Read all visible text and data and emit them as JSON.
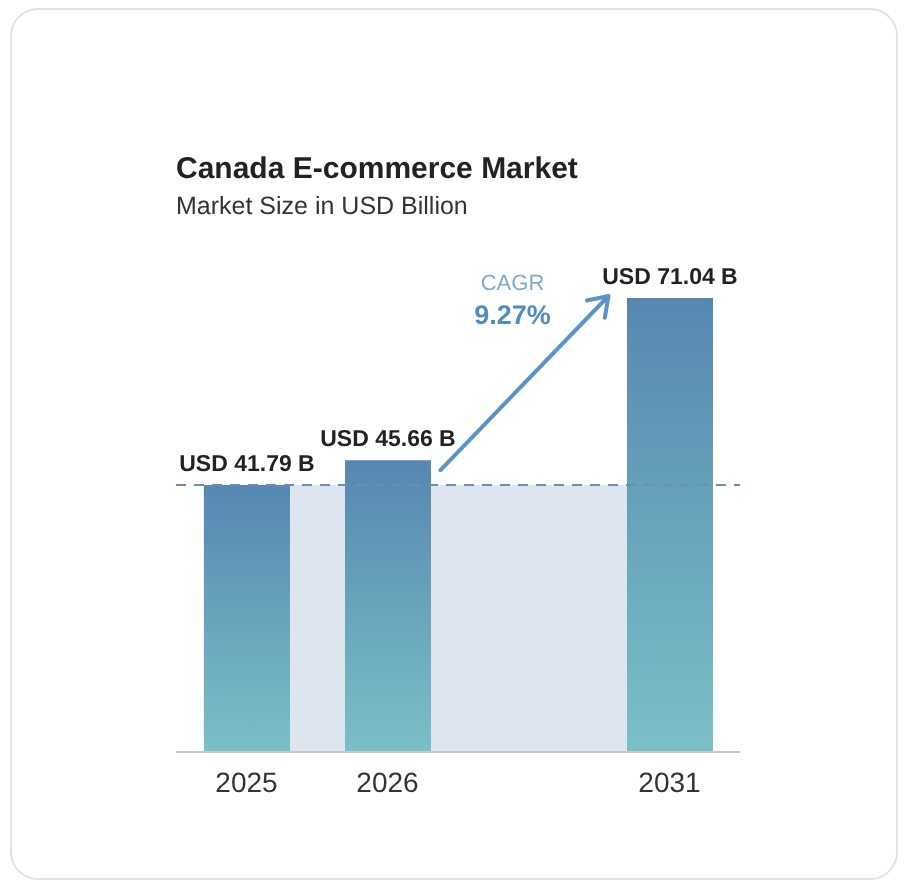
{
  "chart_data": {
    "type": "bar",
    "title": "Canada E-commerce Market",
    "subtitle": "Market Size in USD Billion",
    "categories": [
      "2025",
      "2026",
      null,
      "2031"
    ],
    "values": [
      41.79,
      45.66,
      null,
      71.04
    ],
    "value_labels": [
      "USD 41.79 B",
      "USD 45.66 B",
      null,
      "USD 71.04 B"
    ],
    "color": "#5787b0",
    "ref_lines": [
      {
        "axis": "y",
        "value": 41.79,
        "line_style": "dashed",
        "color": "#6a8fb0"
      }
    ],
    "bands": [
      {
        "axis": "y",
        "from": 0,
        "to": 41.79,
        "color": "#dde6ee"
      }
    ],
    "annotations": [
      "CAGR",
      "9.27%"
    ]
  }
}
